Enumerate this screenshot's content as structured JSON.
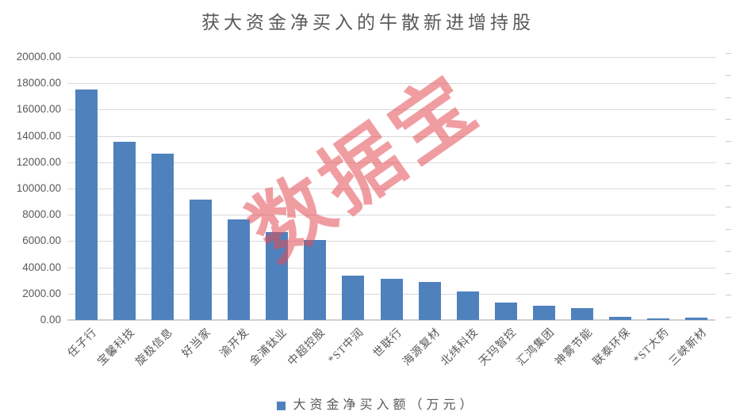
{
  "chart_data": {
    "type": "bar",
    "title": "获大资金净买入的牛散新进增持股",
    "series_name": "大资金净买入额（万元）",
    "categories": [
      "任子行",
      "宝馨科技",
      "旋极信息",
      "好当家",
      "渝开发",
      "金浦钛业",
      "中超控股",
      "*ST中润",
      "世联行",
      "海源复材",
      "北纬科技",
      "天玛智控",
      "汇鸿集团",
      "神雾节能",
      "联泰环保",
      "*ST大药",
      "三峡新材"
    ],
    "values": [
      17510,
      13540,
      12670,
      9180,
      7650,
      6670,
      6060,
      3360,
      3150,
      2910,
      2150,
      1310,
      1090,
      910,
      220,
      110,
      160
    ],
    "ylim": [
      0,
      20000
    ],
    "ytick_step": 2000,
    "ytick_decimals": 2,
    "grid": true,
    "legend_position": "bottom",
    "xlabel": "",
    "ylabel": ""
  },
  "watermark": "数据宝",
  "colors": {
    "bar": "#4F81BD",
    "grid": "#D9D9D9",
    "axis_text": "#595959",
    "watermark_red": "#E44C56"
  }
}
